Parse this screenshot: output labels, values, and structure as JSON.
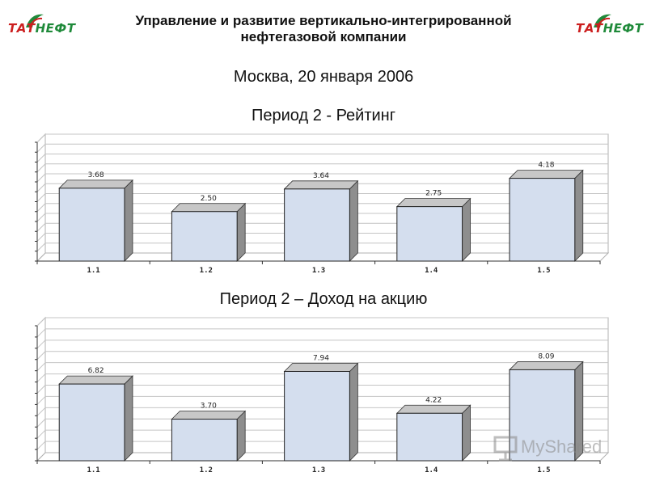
{
  "header": {
    "title_line1": "Управление и развитие вертикально-интегрированной",
    "title_line2": "нефтегазовой компании",
    "logo_tat": "ТАТ",
    "logo_neft": "НЕФТ",
    "logo_colors": {
      "tat": "#cc1f1f",
      "neft": "#1f8a3a"
    }
  },
  "subtitle": "Москва, 20 января 2006",
  "watermark": {
    "text": "MyShared",
    "icon": "presentation-screen-icon"
  },
  "chart_data": [
    {
      "type": "bar",
      "title": "Период 2 - Рейтинг",
      "categories": [
        "1.1",
        "1.2",
        "1.3",
        "1.4",
        "1.5"
      ],
      "values": [
        3.68,
        2.5,
        3.64,
        2.75,
        4.18
      ],
      "value_labels": [
        "3.68",
        "2.50",
        "3.64",
        "2.75",
        "4.18"
      ],
      "ylim": [
        0,
        6
      ],
      "y_ticks": 12,
      "grid": true,
      "style": "3d",
      "bar_color": "#d4deee",
      "bar_side_color": "#8e8e8e",
      "bar_top_color": "#c7c7c7"
    },
    {
      "type": "bar",
      "title": "Период 2 – Доход на акцию",
      "categories": [
        "1.1",
        "1.2",
        "1.3",
        "1.4",
        "1.5"
      ],
      "values": [
        6.82,
        3.7,
        7.94,
        4.22,
        8.09
      ],
      "value_labels": [
        "6.82",
        "3.70",
        "7.94",
        "4.22",
        "8.09"
      ],
      "ylim": [
        0,
        12
      ],
      "y_ticks": 12,
      "grid": true,
      "style": "3d",
      "bar_color": "#d4deee",
      "bar_side_color": "#8e8e8e",
      "bar_top_color": "#c7c7c7"
    }
  ]
}
